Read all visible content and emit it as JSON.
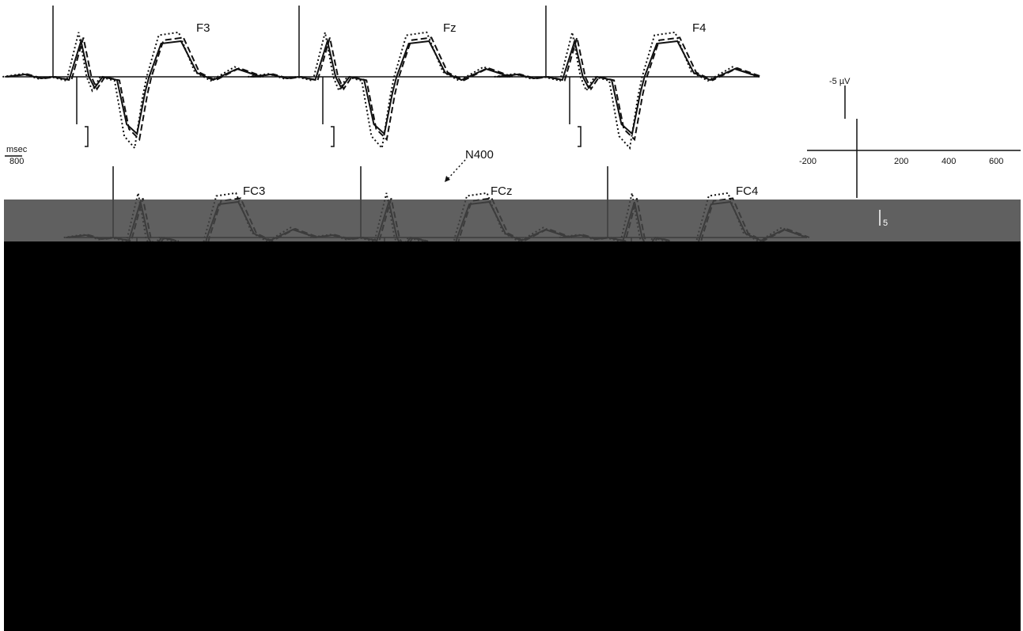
{
  "panels": [
    {
      "label": "F3"
    },
    {
      "label": "Fz"
    },
    {
      "label": "F4"
    },
    {
      "label": "FC3"
    },
    {
      "label": "FCz"
    },
    {
      "label": "FC4"
    }
  ],
  "annotation": "N400",
  "time_scale": {
    "unit": "msec",
    "value": "800"
  },
  "scale_legend": {
    "amplitude": "-5 µV",
    "lower_amplitude": "5",
    "ticks": [
      "-200",
      "200",
      "400",
      "600"
    ]
  }
}
